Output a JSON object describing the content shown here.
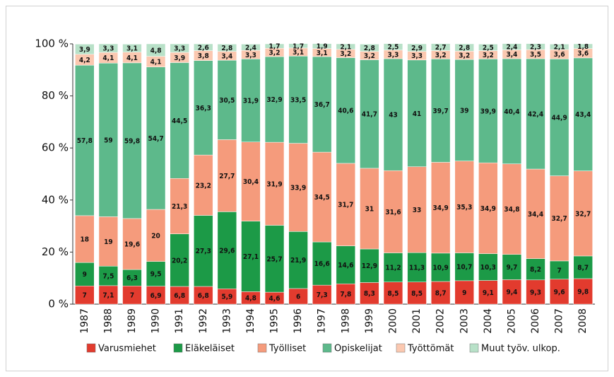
{
  "chart_data": {
    "type": "stacked_bar",
    "categories": [
      "1987",
      "1988",
      "1989",
      "1990",
      "1991",
      "1992",
      "1993",
      "1994",
      "1995",
      "1996",
      "1997",
      "1998",
      "1999",
      "2000",
      "2001",
      "2002",
      "2003",
      "2004",
      "2005",
      "2006",
      "2007",
      "2008"
    ],
    "series": [
      {
        "name": "Varusmiehet",
        "color": "#e23b2e",
        "values": [
          7,
          7.1,
          7,
          6.9,
          6.8,
          6.8,
          5.9,
          4.8,
          4.6,
          6,
          7.3,
          7.8,
          8.3,
          8.5,
          8.5,
          8.7,
          9,
          9.1,
          9.4,
          9.3,
          9.6,
          9.8
        ],
        "value_labels": [
          "7",
          "7,1",
          "7",
          "6,9",
          "6,8",
          "6,8",
          "5,9",
          "4,8",
          "4,6",
          "6",
          "7,3",
          "7,8",
          "8,3",
          "8,5",
          "8,5",
          "8,7",
          "9",
          "9,1",
          "9,4",
          "9,3",
          "9,6",
          "9,8"
        ]
      },
      {
        "name": "Eläkeläiset",
        "color": "#1c9a47",
        "values": [
          9,
          7.5,
          6.3,
          9.5,
          20.2,
          27.3,
          29.6,
          27.1,
          25.7,
          21.9,
          16.6,
          14.6,
          12.9,
          11.2,
          11.3,
          10.9,
          10.7,
          10.3,
          9.7,
          8.2,
          7,
          8.7
        ],
        "value_labels": [
          "9",
          "7,5",
          "6,3",
          "9,5",
          "20,2",
          "27,3",
          "29,6",
          "27,1",
          "25,7",
          "21,9",
          "16,6",
          "14,6",
          "12,9",
          "11,2",
          "11,3",
          "10,9",
          "10,7",
          "10,3",
          "9,7",
          "8,2",
          "7",
          "8,7"
        ]
      },
      {
        "name": "Työlliset",
        "color": "#f59b7c",
        "values": [
          18,
          19,
          19.6,
          20,
          21.3,
          23.2,
          27.7,
          30.4,
          31.9,
          33.9,
          34.5,
          31.7,
          31,
          31.6,
          33,
          34.9,
          35.3,
          34.9,
          34.8,
          34.4,
          32.7,
          32.7
        ],
        "value_labels": [
          "18",
          "19",
          "19,6",
          "20",
          "21,3",
          "23,2",
          "27,7",
          "30,4",
          "31,9",
          "33,9",
          "34,5",
          "31,7",
          "31",
          "31,6",
          "33",
          "34,9",
          "35,3",
          "34,9",
          "34,8",
          "34,4",
          "32,7",
          "32,7"
        ]
      },
      {
        "name": "Opiskelijat",
        "color": "#5db98b",
        "values": [
          57.8,
          59,
          59.8,
          54.7,
          44.5,
          36.3,
          30.5,
          31.9,
          32.9,
          33.5,
          36.7,
          40.6,
          41.7,
          43,
          41,
          39.7,
          39,
          39.9,
          40.4,
          42.4,
          44.9,
          43.4
        ],
        "value_labels": [
          "57,8",
          "59",
          "59,8",
          "54,7",
          "44,5",
          "36,3",
          "30,5",
          "31,9",
          "32,9",
          "33,5",
          "36,7",
          "40,6",
          "41,7",
          "43",
          "41",
          "39,7",
          "39",
          "39,9",
          "40,4",
          "42,4",
          "44,9",
          "43,4"
        ]
      },
      {
        "name": "Työttömät",
        "color": "#fbc8b0",
        "values": [
          4.2,
          4.1,
          4.1,
          4.1,
          3.9,
          3.8,
          3.4,
          3.3,
          3.2,
          3.1,
          3.1,
          3.2,
          3.2,
          3.3,
          3.3,
          3.2,
          3.2,
          3.2,
          3.4,
          3.5,
          3.6,
          3.6
        ],
        "value_labels": [
          "4,2",
          "4,1",
          "4,1",
          "4,1",
          "3,9",
          "3,8",
          "3,4",
          "3,3",
          "3,2",
          "3,1",
          "3,1",
          "3,2",
          "3,2",
          "3,3",
          "3,3",
          "3,2",
          "3,2",
          "3,2",
          "3,4",
          "3,5",
          "3,6",
          "3,6"
        ]
      },
      {
        "name": "Muut työv. ulkop.",
        "color": "#b8e1c8",
        "values": [
          3.9,
          3.3,
          3.1,
          4.8,
          3.3,
          2.6,
          2.8,
          2.4,
          1.7,
          1.7,
          1.9,
          2.1,
          2.8,
          2.5,
          2.9,
          2.7,
          2.8,
          2.5,
          2.4,
          2.3,
          2.1,
          1.8
        ],
        "value_labels": [
          "3,9",
          "3,3",
          "3,1",
          "4,8",
          "3,3",
          "2,6",
          "2,8",
          "2,4",
          "1,7",
          "1,7",
          "1,9",
          "2,1",
          "2,8",
          "2,5",
          "2,9",
          "2,7",
          "2,8",
          "2,5",
          "2,4",
          "2,3",
          "2,1",
          "1,8"
        ]
      }
    ],
    "ylim": [
      0,
      100
    ],
    "yticks": [
      {
        "value": 0,
        "label": "0 %"
      },
      {
        "value": 20,
        "label": "20 %"
      },
      {
        "value": 40,
        "label": "40 %"
      },
      {
        "value": 60,
        "label": "60 %"
      },
      {
        "value": 80,
        "label": "80 %"
      },
      {
        "value": 100,
        "label": "100 %"
      }
    ]
  }
}
